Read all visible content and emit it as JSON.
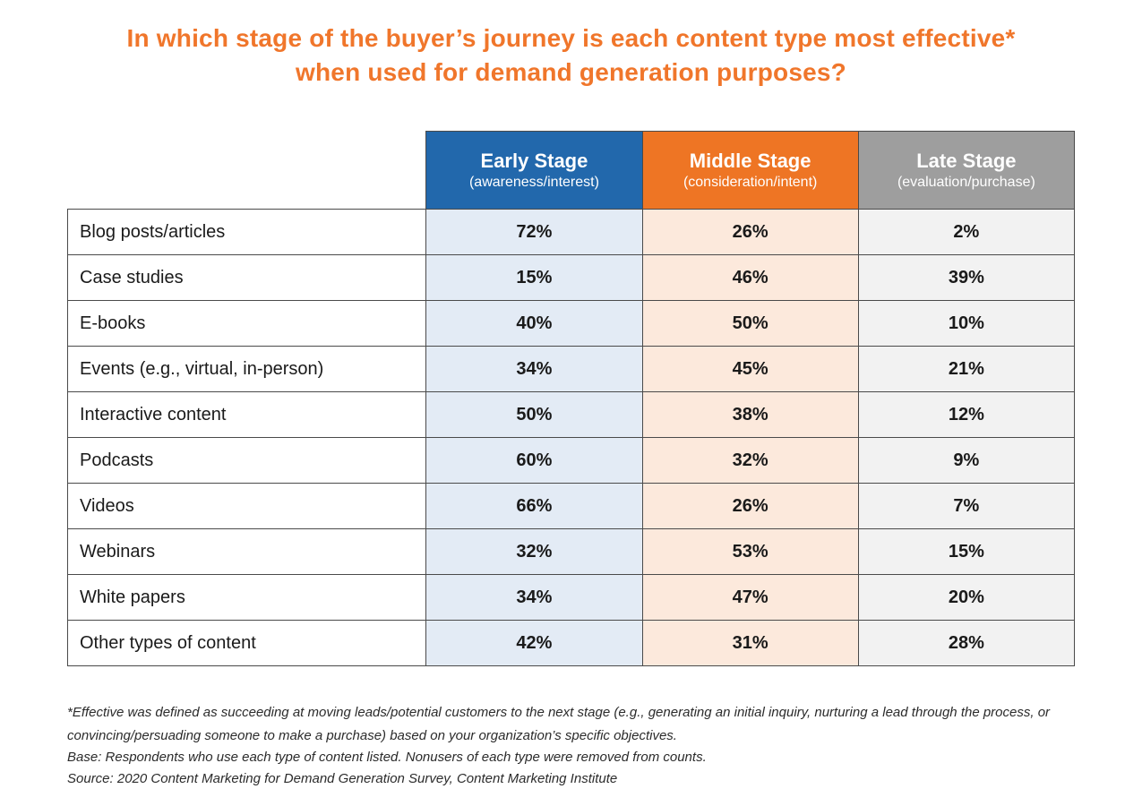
{
  "title": "In which stage of the buyer’s journey is each content type most effective* when used for demand generation purposes?",
  "colors": {
    "title_accent": "#F0762B",
    "header_early": "#2268AC",
    "header_middle": "#EE7524",
    "header_late": "#9E9E9E",
    "tint_early": "#E3EBF5",
    "tint_middle": "#FCE9DC",
    "tint_late": "#F2F2F2",
    "grid_border": "#4A4A4A",
    "body_text": "#1A1A1A",
    "note_text": "#2B2B2B"
  },
  "chart_data": {
    "type": "table",
    "title": "In which stage of the buyer’s journey is each content type most effective* when used for demand generation purposes?",
    "columns": [
      {
        "label": "Early Stage",
        "sublabel": "(awareness/interest)",
        "color": "#2268AC"
      },
      {
        "label": "Middle Stage",
        "sublabel": "(consideration/intent)",
        "color": "#EE7524"
      },
      {
        "label": "Late Stage",
        "sublabel": "(evaluation/purchase)",
        "color": "#9E9E9E"
      }
    ],
    "rows": [
      {
        "label": "Blog posts/articles",
        "values": [
          "72%",
          "26%",
          "2%"
        ]
      },
      {
        "label": "Case studies",
        "values": [
          "15%",
          "46%",
          "39%"
        ]
      },
      {
        "label": "E-books",
        "values": [
          "40%",
          "50%",
          "10%"
        ]
      },
      {
        "label": "Events (e.g., virtual, in-person)",
        "values": [
          "34%",
          "45%",
          "21%"
        ]
      },
      {
        "label": "Interactive content",
        "values": [
          "50%",
          "38%",
          "12%"
        ]
      },
      {
        "label": "Podcasts",
        "values": [
          "60%",
          "32%",
          "9%"
        ]
      },
      {
        "label": "Videos",
        "values": [
          "66%",
          "26%",
          "7%"
        ]
      },
      {
        "label": "Webinars",
        "values": [
          "32%",
          "53%",
          "15%"
        ]
      },
      {
        "label": "White papers",
        "values": [
          "34%",
          "47%",
          "20%"
        ]
      },
      {
        "label": "Other types of content",
        "values": [
          "42%",
          "31%",
          "28%"
        ]
      }
    ]
  },
  "footnotes": {
    "effective_definition": "*Effective was defined as succeeding at moving leads/potential customers to the next stage (e.g., generating an initial inquiry, nurturing a lead through the process, or convincing/persuading someone to make a purchase) based on your organization’s specific objectives.",
    "base": "Base: Respondents who use each type of content listed. Nonusers of each type were removed from counts.",
    "source": "Source: 2020 Content Marketing for Demand Generation Survey, Content Marketing Institute"
  }
}
